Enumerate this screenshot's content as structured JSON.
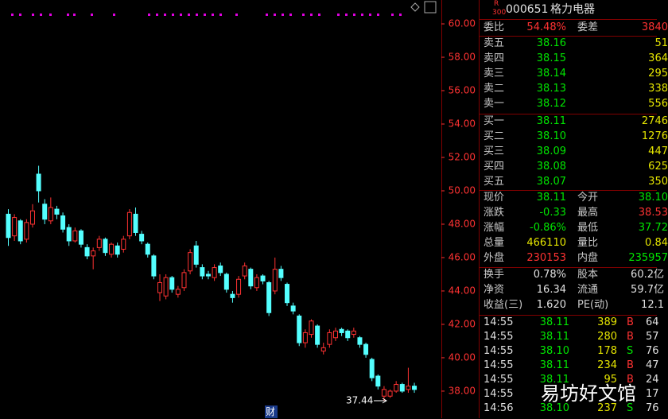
{
  "chart": {
    "type": "candlestick",
    "ylim": [
      37.14,
      61.43
    ],
    "yticks": [
      {
        "value": 38,
        "label": "38.00"
      },
      {
        "value": 40,
        "label": "40.00"
      },
      {
        "value": 42,
        "label": "42.00"
      },
      {
        "value": 44,
        "label": "44.00"
      },
      {
        "value": 46,
        "label": "46.00"
      },
      {
        "value": 48,
        "label": "48.00"
      },
      {
        "value": 50,
        "label": "50.00"
      },
      {
        "value": 52,
        "label": "52.00"
      },
      {
        "value": 54,
        "label": "54.00"
      },
      {
        "value": 56,
        "label": "56.00"
      },
      {
        "value": 58,
        "label": "58.00"
      },
      {
        "value": 60,
        "label": "60.00"
      }
    ],
    "up_color": "#ff3232",
    "down_color": "#54ffff",
    "axis_color": "#ff3232",
    "candles": [
      [
        48.6,
        48.9,
        46.7,
        47.2
      ],
      [
        47.3,
        48.6,
        47.0,
        48.4
      ],
      [
        48.2,
        48.3,
        46.8,
        47.0
      ],
      [
        47.1,
        48.3,
        46.9,
        48.1
      ],
      [
        48.0,
        49.2,
        47.8,
        48.8
      ],
      [
        51.0,
        51.5,
        49.3,
        50.0
      ],
      [
        49.2,
        49.5,
        48.0,
        48.3
      ],
      [
        48.2,
        49.6,
        48.0,
        49.0
      ],
      [
        48.9,
        49.1,
        48.3,
        48.6
      ],
      [
        48.5,
        48.7,
        47.5,
        47.7
      ],
      [
        47.8,
        48.0,
        46.7,
        47.0
      ],
      [
        47.0,
        47.8,
        46.9,
        47.6
      ],
      [
        47.6,
        47.7,
        46.6,
        46.8
      ],
      [
        46.6,
        46.8,
        45.9,
        46.1
      ],
      [
        46.1,
        46.6,
        45.3,
        46.4
      ],
      [
        46.6,
        47.3,
        46.4,
        47.1
      ],
      [
        47.1,
        47.2,
        46.1,
        46.3
      ],
      [
        46.2,
        46.9,
        46.0,
        46.8
      ],
      [
        46.7,
        46.9,
        46.0,
        46.2
      ],
      [
        46.5,
        47.3,
        46.3,
        47.1
      ],
      [
        47.3,
        48.9,
        47.1,
        48.7
      ],
      [
        48.6,
        49.0,
        47.3,
        47.5
      ],
      [
        47.4,
        47.6,
        46.8,
        47.0
      ],
      [
        46.8,
        46.9,
        46.0,
        46.2
      ],
      [
        46.1,
        46.2,
        44.7,
        44.9
      ],
      [
        43.9,
        45.0,
        43.4,
        44.5
      ],
      [
        43.7,
        45.0,
        43.5,
        44.8
      ],
      [
        44.8,
        44.9,
        43.9,
        44.1
      ],
      [
        43.8,
        44.3,
        43.6,
        44.1
      ],
      [
        44.2,
        45.3,
        44.0,
        45.1
      ],
      [
        45.2,
        46.5,
        45.0,
        46.3
      ],
      [
        46.7,
        47.0,
        45.4,
        45.6
      ],
      [
        45.4,
        45.6,
        44.7,
        44.9
      ],
      [
        45.0,
        45.2,
        44.7,
        44.9
      ],
      [
        44.8,
        45.6,
        44.6,
        45.4
      ],
      [
        45.5,
        45.7,
        44.9,
        45.1
      ],
      [
        45.0,
        45.1,
        43.9,
        44.1
      ],
      [
        43.8,
        44.0,
        43.3,
        43.6
      ],
      [
        43.8,
        44.9,
        43.6,
        44.7
      ],
      [
        44.9,
        45.7,
        44.7,
        45.5
      ],
      [
        45.3,
        45.4,
        44.1,
        44.3
      ],
      [
        44.2,
        45.0,
        44.0,
        44.8
      ],
      [
        44.9,
        45.0,
        44.4,
        44.6
      ],
      [
        44.5,
        44.6,
        42.5,
        42.7
      ],
      [
        44.0,
        46.0,
        43.8,
        45.3
      ],
      [
        45.3,
        45.5,
        44.6,
        44.8
      ],
      [
        44.4,
        44.5,
        43.1,
        43.3
      ],
      [
        43.1,
        43.3,
        42.6,
        42.8
      ],
      [
        42.5,
        42.6,
        40.7,
        40.9
      ],
      [
        40.9,
        41.7,
        40.6,
        41.5
      ],
      [
        41.4,
        42.3,
        41.2,
        42.2
      ],
      [
        41.9,
        42.0,
        40.6,
        40.8
      ],
      [
        40.4,
        40.9,
        40.2,
        40.6
      ],
      [
        40.8,
        41.7,
        40.6,
        41.5
      ],
      [
        41.2,
        41.8,
        41.0,
        41.6
      ],
      [
        41.7,
        41.8,
        41.3,
        41.5
      ],
      [
        41.6,
        41.7,
        41.0,
        41.2
      ],
      [
        41.4,
        41.8,
        41.2,
        41.6
      ],
      [
        41.2,
        41.3,
        40.6,
        40.8
      ],
      [
        40.8,
        40.9,
        40.0,
        40.2
      ],
      [
        39.9,
        40.0,
        38.6,
        38.8
      ],
      [
        38.9,
        39.0,
        38.1,
        38.3
      ],
      [
        37.7,
        38.3,
        37.44,
        38.1
      ],
      [
        37.7,
        38.1,
        37.6,
        38.0
      ],
      [
        38.0,
        38.6,
        37.9,
        38.4
      ],
      [
        38.4,
        38.5,
        37.9,
        38.0
      ],
      [
        38.1,
        39.4,
        37.9,
        38.3
      ],
      [
        38.3,
        38.5,
        37.9,
        38.1
      ]
    ],
    "annotation": "37.44",
    "footer_tag": "财"
  },
  "header": {
    "badge_top": "R",
    "badge_bottom": "300",
    "code": "000651",
    "name": "格力电器"
  },
  "ratio": {
    "l1": "委比",
    "v1": "54.48%",
    "l2": "委差",
    "v2": "3840"
  },
  "asks": [
    {
      "label": "卖五",
      "price": "38.16",
      "vol": "51"
    },
    {
      "label": "卖四",
      "price": "38.15",
      "vol": "364"
    },
    {
      "label": "卖三",
      "price": "38.14",
      "vol": "295"
    },
    {
      "label": "卖二",
      "price": "38.13",
      "vol": "338"
    },
    {
      "label": "卖一",
      "price": "38.12",
      "vol": "556"
    }
  ],
  "bids": [
    {
      "label": "买一",
      "price": "38.11",
      "vol": "2746"
    },
    {
      "label": "买二",
      "price": "38.10",
      "vol": "1276"
    },
    {
      "label": "买三",
      "price": "38.09",
      "vol": "447"
    },
    {
      "label": "买四",
      "price": "38.08",
      "vol": "625"
    },
    {
      "label": "买五",
      "price": "38.07",
      "vol": "350"
    }
  ],
  "stats": [
    {
      "l1": "现价",
      "v1": "38.11",
      "c1": "#00e600",
      "l2": "今开",
      "v2": "38.10",
      "c2": "#00e600"
    },
    {
      "l1": "涨跌",
      "v1": "-0.33",
      "c1": "#00e600",
      "l2": "最高",
      "v2": "38.53",
      "c2": "#ff3232"
    },
    {
      "l1": "涨幅",
      "v1": "-0.86%",
      "c1": "#00e600",
      "l2": "最低",
      "v2": "37.72",
      "c2": "#00e600"
    },
    {
      "l1": "总量",
      "v1": "466110",
      "c1": "#e6e600",
      "l2": "量比",
      "v2": "0.84",
      "c2": "#e6e600"
    },
    {
      "l1": "外盘",
      "v1": "230153",
      "c1": "#ff3232",
      "l2": "内盘",
      "v2": "235957",
      "c2": "#00e600"
    }
  ],
  "stats2": [
    {
      "l1": "换手",
      "v1": "0.78%",
      "l2": "股本",
      "v2": "60.2亿"
    },
    {
      "l1": "净资",
      "v1": "16.34",
      "l2": "流通",
      "v2": "59.7亿"
    },
    {
      "l1": "收益(三)",
      "v1": "1.620",
      "l2": "PE(动)",
      "v2": "12.1"
    }
  ],
  "trades": [
    {
      "time": "14:55",
      "price": "38.11",
      "vol": "389",
      "side": "B",
      "num": "64"
    },
    {
      "time": "14:55",
      "price": "38.11",
      "vol": "280",
      "side": "B",
      "num": "57"
    },
    {
      "time": "14:55",
      "price": "38.10",
      "vol": "178",
      "side": "S",
      "num": "76"
    },
    {
      "time": "14:55",
      "price": "38.11",
      "vol": "234",
      "side": "B",
      "num": "47"
    },
    {
      "time": "14:55",
      "price": "38.11",
      "vol": "95",
      "side": "B",
      "num": "24"
    },
    {
      "time": "14:55",
      "num": "17"
    },
    {
      "time": "14:56",
      "price": "38.10",
      "vol": "237",
      "side": "S",
      "num": "76"
    }
  ],
  "watermark": "易坊好文馆"
}
